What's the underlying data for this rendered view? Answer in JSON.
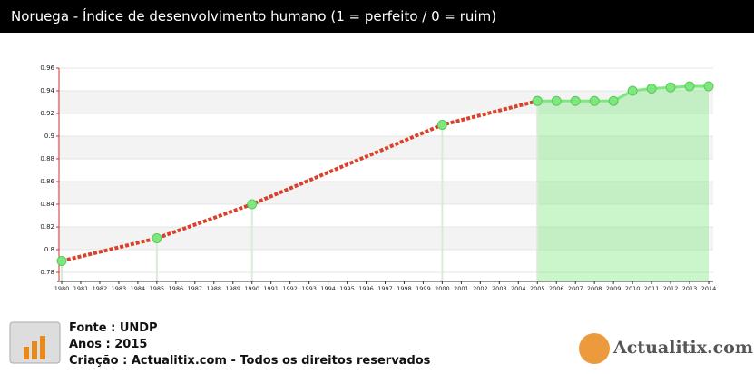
{
  "chart_data": {
    "type": "line",
    "title": "Noruega - Índice de desenvolvimento humano (1 = perfeito / 0 = ruim)",
    "x": [
      1980,
      1985,
      1990,
      2000,
      2005,
      2006,
      2007,
      2008,
      2009,
      2010,
      2011,
      2012,
      2013,
      2014
    ],
    "series": [
      {
        "color": "#d9412a",
        "values": [
          0.79,
          0.81,
          0.84,
          0.91,
          0.931,
          null,
          null,
          null,
          null,
          null,
          null,
          null,
          null,
          null
        ]
      },
      {
        "color": "#7ee87e",
        "values": [
          null,
          null,
          null,
          null,
          0.931,
          0.931,
          0.931,
          0.931,
          0.931,
          0.94,
          0.942,
          0.943,
          0.944,
          0.944
        ]
      }
    ],
    "marker_color": "#7ee87e",
    "xlim": [
      1980,
      2014
    ],
    "xticks": [
      1980,
      1981,
      1982,
      1983,
      1984,
      1985,
      1986,
      1987,
      1988,
      1989,
      1990,
      1991,
      1992,
      1993,
      1994,
      1995,
      1996,
      1997,
      1998,
      1999,
      2000,
      2001,
      2002,
      2003,
      2004,
      2005,
      2006,
      2007,
      2008,
      2009,
      2010,
      2011,
      2012,
      2013,
      2014
    ],
    "ylim": [
      0.78,
      0.96
    ],
    "yticks": [
      0.78,
      0.8,
      0.82,
      0.84,
      0.86,
      0.88,
      0.9,
      0.92,
      0.94,
      0.96
    ],
    "grid": true
  },
  "footer": {
    "source": "Fonte : UNDP",
    "years": "Anos : 2015",
    "credit": "Criação : Actualitix.com - Todos os direitos reservados"
  },
  "logo": "Actualitix.com"
}
